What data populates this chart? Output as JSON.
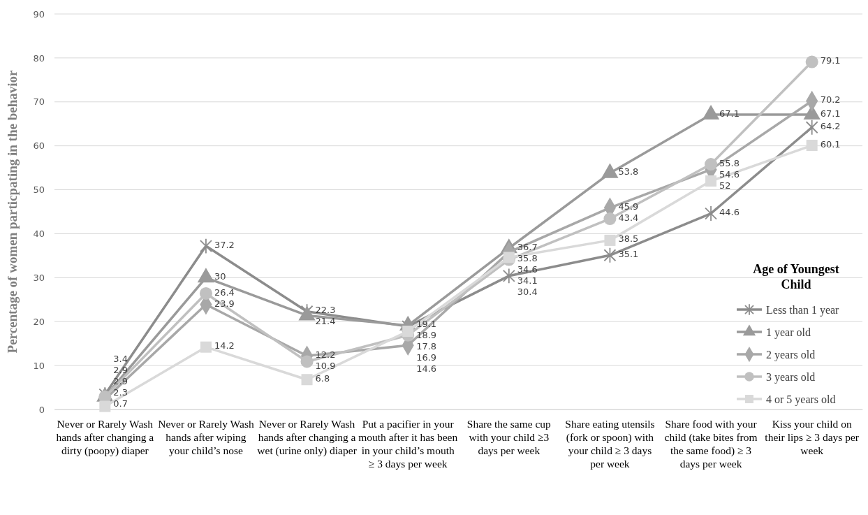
{
  "chart_data": {
    "type": "line",
    "ylabel": "Percentage of women particpating in the behavior",
    "legend_title": "Age of Youngest Child",
    "categories": [
      "Never or Rarely Wash hands after changing a dirty (poopy) diaper",
      "Never or Rarely Wash hands after wiping your child’s nose",
      "Never or Rarely Wash hands after changing a wet (urine only) diaper",
      "Put a pacifier in your mouth after it has been in your child’s mouth ≥ 3 days per week",
      "Share the same cup with your child ≥3 days per week",
      "Share eating utensils (fork or spoon) with your child ≥ 3 days per week",
      "Share food with your child (take bites from the same food) ≥ 3 days per week",
      "Kiss your child on their lips ≥ 3 days per week"
    ],
    "series": [
      {
        "name": "Less than 1 year",
        "color": "#8c8c8c",
        "marker": "cross",
        "values": [
          3.4,
          37.2,
          22.3,
          18.9,
          30.4,
          35.1,
          44.6,
          64.2
        ]
      },
      {
        "name": "1 year old",
        "color": "#9a9a9a",
        "marker": "triangle",
        "values": [
          2.9,
          30,
          21.4,
          19.1,
          36.7,
          53.8,
          67.1,
          67.1
        ]
      },
      {
        "name": "2 years old",
        "color": "#a8a8a8",
        "marker": "diamond",
        "values": [
          2.3,
          23.9,
          12.2,
          14.6,
          35.8,
          45.9,
          54.6,
          70.2
        ]
      },
      {
        "name": "3 years old",
        "color": "#c0c0c0",
        "marker": "circle",
        "values": [
          2.9,
          26.4,
          10.9,
          16.9,
          34.1,
          43.4,
          55.8,
          79.1
        ]
      },
      {
        "name": "4 or 5 years old",
        "color": "#d9d9d9",
        "marker": "square",
        "values": [
          0.7,
          14.2,
          6.8,
          17.8,
          34.6,
          38.5,
          52,
          60.1
        ]
      }
    ],
    "ylim": [
      0,
      90
    ],
    "yticks": [
      0,
      10,
      20,
      30,
      40,
      50,
      60,
      70,
      80,
      90
    ],
    "grid": "y",
    "legend": "right",
    "data_labels": true,
    "line_style": "solid"
  }
}
